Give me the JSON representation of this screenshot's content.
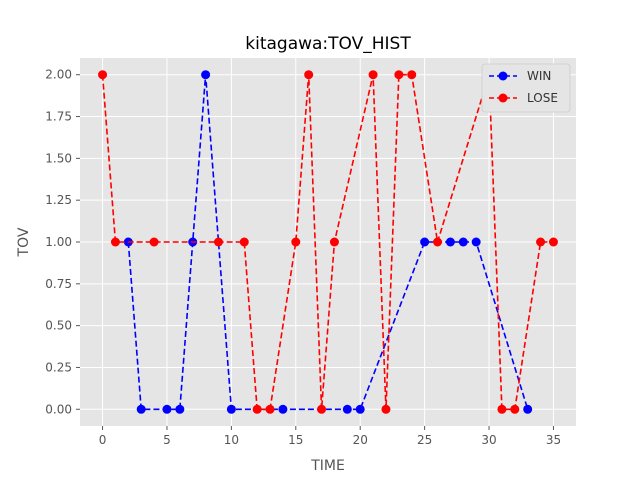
{
  "chart_data": {
    "type": "line",
    "title": "kitagawa:TOV_HIST",
    "xlabel": "TIME",
    "ylabel": "TOV",
    "xlim": [
      -1.75,
      36.75
    ],
    "ylim": [
      -0.1,
      2.1
    ],
    "xticks": [
      0,
      5,
      10,
      15,
      20,
      25,
      30,
      35
    ],
    "xtick_labels": [
      "0",
      "5",
      "10",
      "15",
      "20",
      "25",
      "30",
      "35"
    ],
    "yticks": [
      0,
      0.25,
      0.5,
      0.75,
      1.0,
      1.25,
      1.5,
      1.75,
      2.0
    ],
    "ytick_labels": [
      "0.00",
      "0.25",
      "0.50",
      "0.75",
      "1.00",
      "1.25",
      "1.50",
      "1.75",
      "2.00"
    ],
    "grid": true,
    "legend_position": "top-right",
    "series": [
      {
        "name": "WIN",
        "color": "#0000ff",
        "linestyle": "dashed",
        "marker": "circle",
        "x": [
          2,
          3,
          5,
          6,
          7,
          8,
          10,
          14,
          19,
          20,
          25,
          27,
          28,
          29,
          33
        ],
        "y": [
          1,
          0,
          0,
          0,
          1,
          2,
          0,
          0,
          0,
          0,
          1,
          1,
          1,
          1,
          0
        ]
      },
      {
        "name": "LOSE",
        "color": "#ff0000",
        "linestyle": "dashed",
        "marker": "circle",
        "x": [
          0,
          1,
          4,
          9,
          11,
          12,
          13,
          15,
          16,
          17,
          18,
          21,
          22,
          23,
          24,
          26,
          30,
          31,
          32,
          34,
          35
        ],
        "y": [
          2,
          1,
          1,
          1,
          1,
          0,
          0,
          1,
          2,
          0,
          1,
          2,
          0,
          2,
          2,
          1,
          2,
          0,
          0,
          1,
          1
        ]
      }
    ]
  }
}
